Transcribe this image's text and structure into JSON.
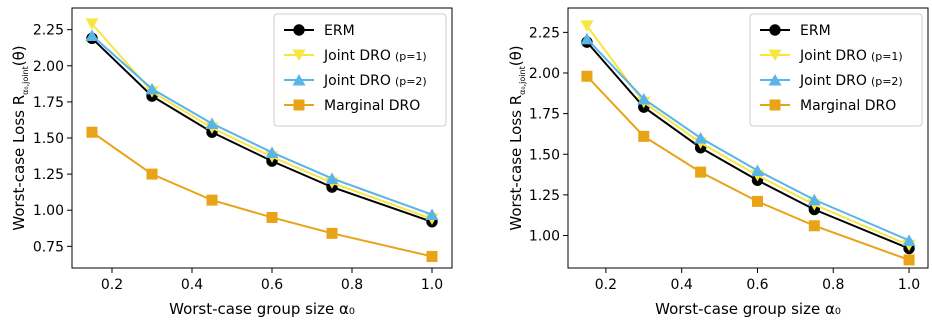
{
  "chart_data": [
    {
      "type": "line",
      "xlabel": "Worst-case group size  α₀",
      "ylabel_main": "Worst-case Loss  R",
      "ylabel_sub": "α₀,joint",
      "ylabel_tail": "(θ)",
      "xlim": [
        0.1,
        1.05
      ],
      "ylim": [
        0.6,
        2.4
      ],
      "xticks": [
        0.2,
        0.4,
        0.6,
        0.8,
        1.0
      ],
      "xtick_labels": [
        "0.2",
        "0.4",
        "0.6",
        "0.8",
        "1.0"
      ],
      "yticks": [
        0.75,
        1.0,
        1.25,
        1.5,
        1.75,
        2.0,
        2.25
      ],
      "ytick_labels": [
        "0.75",
        "1.00",
        "1.25",
        "1.50",
        "1.75",
        "2.00",
        "2.25"
      ],
      "legend_position": "top-right",
      "x": [
        0.15,
        0.3,
        0.45,
        0.6,
        0.75,
        1.0
      ],
      "series": [
        {
          "name": "ERM",
          "name_suffix": "",
          "color": "#000000",
          "marker": "circle",
          "values": [
            2.19,
            1.79,
            1.54,
            1.34,
            1.16,
            0.92
          ]
        },
        {
          "name": "Joint DRO",
          "name_suffix": "(p=1)",
          "color": "#f5e642",
          "marker": "triangle-down",
          "values": [
            2.29,
            1.82,
            1.57,
            1.37,
            1.19,
            0.94
          ]
        },
        {
          "name": "Joint DRO",
          "name_suffix": "(p=2)",
          "color": "#5ab4e8",
          "marker": "triangle-up",
          "values": [
            2.21,
            1.84,
            1.6,
            1.4,
            1.22,
            0.97
          ]
        },
        {
          "name": "Marginal DRO",
          "name_suffix": "",
          "color": "#e8a317",
          "marker": "square",
          "values": [
            1.54,
            1.25,
            1.07,
            0.95,
            0.84,
            0.68
          ]
        }
      ]
    },
    {
      "type": "line",
      "xlabel": "Worst-case group size  α₀",
      "ylabel_main": "Worst-case Loss  R",
      "ylabel_sub": "α₀,joint",
      "ylabel_tail": "(θ)",
      "xlim": [
        0.1,
        1.05
      ],
      "ylim": [
        0.8,
        2.4
      ],
      "xticks": [
        0.2,
        0.4,
        0.6,
        0.8,
        1.0
      ],
      "xtick_labels": [
        "0.2",
        "0.4",
        "0.6",
        "0.8",
        "1.0"
      ],
      "yticks": [
        1.0,
        1.25,
        1.5,
        1.75,
        2.0,
        2.25
      ],
      "ytick_labels": [
        "1.00",
        "1.25",
        "1.50",
        "1.75",
        "2.00",
        "2.25"
      ],
      "legend_position": "top-right",
      "x": [
        0.15,
        0.3,
        0.45,
        0.6,
        0.75,
        1.0
      ],
      "series": [
        {
          "name": "ERM",
          "name_suffix": "",
          "color": "#000000",
          "marker": "circle",
          "values": [
            2.19,
            1.79,
            1.54,
            1.34,
            1.16,
            0.92
          ]
        },
        {
          "name": "Joint DRO",
          "name_suffix": "(p=1)",
          "color": "#f5e642",
          "marker": "triangle-down",
          "values": [
            2.29,
            1.82,
            1.57,
            1.37,
            1.19,
            0.94
          ]
        },
        {
          "name": "Joint DRO",
          "name_suffix": "(p=2)",
          "color": "#5ab4e8",
          "marker": "triangle-up",
          "values": [
            2.21,
            1.84,
            1.6,
            1.4,
            1.22,
            0.97
          ]
        },
        {
          "name": "Marginal DRO",
          "name_suffix": "",
          "color": "#e8a317",
          "marker": "square",
          "values": [
            1.98,
            1.61,
            1.39,
            1.21,
            1.06,
            0.85
          ]
        }
      ]
    }
  ]
}
